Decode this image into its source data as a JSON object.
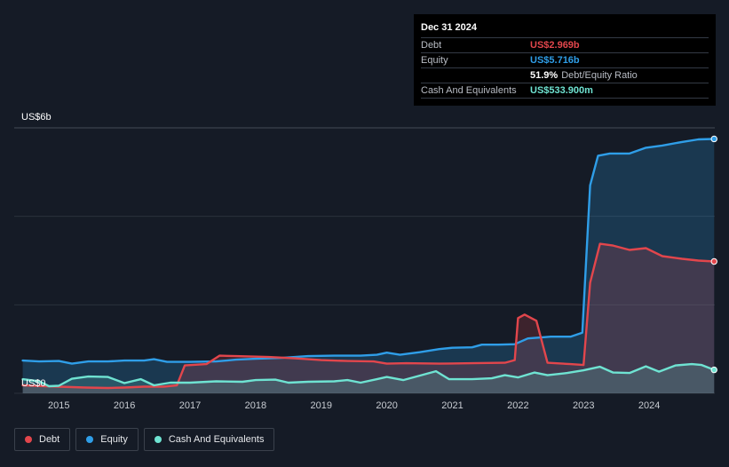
{
  "tooltip": {
    "date": "Dec 31 2024",
    "rows": [
      {
        "label": "Debt",
        "value": "US$2.969b",
        "color": "#e2464c"
      },
      {
        "label": "Equity",
        "value": "US$5.716b",
        "color": "#2f9ee8"
      },
      {
        "label": "",
        "value": "51.9%",
        "suffix": "Debt/Equity Ratio",
        "color": "#ffffff"
      },
      {
        "label": "Cash And Equivalents",
        "value": "US$533.900m",
        "color": "#6fe3d2"
      }
    ]
  },
  "legend": [
    {
      "label": "Debt",
      "color": "#e2464c"
    },
    {
      "label": "Equity",
      "color": "#2f9ee8"
    },
    {
      "label": "Cash And Equivalents",
      "color": "#6fe3d2"
    }
  ],
  "chart_data": {
    "type": "area",
    "y_unit_labels": {
      "top": "US$6b",
      "bottom": "US$0"
    },
    "ylim": [
      0,
      6
    ],
    "xlim": [
      2014.45,
      2025.0
    ],
    "x_ticks": [
      "2015",
      "2016",
      "2017",
      "2018",
      "2019",
      "2020",
      "2021",
      "2022",
      "2023",
      "2024"
    ],
    "grid": true,
    "legend_position": "bottom-left",
    "series": [
      {
        "name": "Equity",
        "color": "#2f9ee8",
        "points": [
          [
            2014.45,
            0.74
          ],
          [
            2014.7,
            0.72
          ],
          [
            2015.0,
            0.73
          ],
          [
            2015.2,
            0.67
          ],
          [
            2015.45,
            0.72
          ],
          [
            2015.75,
            0.72
          ],
          [
            2016.0,
            0.74
          ],
          [
            2016.3,
            0.74
          ],
          [
            2016.45,
            0.77
          ],
          [
            2016.65,
            0.71
          ],
          [
            2017.0,
            0.71
          ],
          [
            2017.4,
            0.72
          ],
          [
            2017.7,
            0.76
          ],
          [
            2018.0,
            0.78
          ],
          [
            2018.4,
            0.8
          ],
          [
            2018.8,
            0.84
          ],
          [
            2019.2,
            0.85
          ],
          [
            2019.6,
            0.85
          ],
          [
            2019.85,
            0.87
          ],
          [
            2020.0,
            0.92
          ],
          [
            2020.2,
            0.87
          ],
          [
            2020.5,
            0.93
          ],
          [
            2020.8,
            1.0
          ],
          [
            2021.0,
            1.03
          ],
          [
            2021.3,
            1.04
          ],
          [
            2021.45,
            1.1
          ],
          [
            2021.7,
            1.1
          ],
          [
            2021.95,
            1.11
          ],
          [
            2022.15,
            1.24
          ],
          [
            2022.5,
            1.28
          ],
          [
            2022.8,
            1.28
          ],
          [
            2022.98,
            1.37
          ],
          [
            2023.1,
            4.7
          ],
          [
            2023.22,
            5.37
          ],
          [
            2023.4,
            5.42
          ],
          [
            2023.7,
            5.42
          ],
          [
            2023.95,
            5.55
          ],
          [
            2024.2,
            5.6
          ],
          [
            2024.5,
            5.68
          ],
          [
            2024.75,
            5.74
          ],
          [
            2024.99,
            5.75
          ]
        ]
      },
      {
        "name": "Debt",
        "color": "#e2464c",
        "points": [
          [
            2014.45,
            0.18
          ],
          [
            2014.8,
            0.16
          ],
          [
            2015.0,
            0.15
          ],
          [
            2015.4,
            0.13
          ],
          [
            2015.75,
            0.12
          ],
          [
            2016.0,
            0.13
          ],
          [
            2016.3,
            0.15
          ],
          [
            2016.6,
            0.15
          ],
          [
            2016.8,
            0.18
          ],
          [
            2016.92,
            0.63
          ],
          [
            2017.25,
            0.66
          ],
          [
            2017.45,
            0.85
          ],
          [
            2017.7,
            0.84
          ],
          [
            2018.2,
            0.82
          ],
          [
            2018.6,
            0.79
          ],
          [
            2019.0,
            0.75
          ],
          [
            2019.4,
            0.73
          ],
          [
            2019.8,
            0.72
          ],
          [
            2020.0,
            0.67
          ],
          [
            2020.3,
            0.68
          ],
          [
            2020.8,
            0.67
          ],
          [
            2021.3,
            0.68
          ],
          [
            2021.8,
            0.69
          ],
          [
            2021.95,
            0.75
          ],
          [
            2022.0,
            1.7
          ],
          [
            2022.1,
            1.78
          ],
          [
            2022.28,
            1.64
          ],
          [
            2022.45,
            0.69
          ],
          [
            2022.8,
            0.66
          ],
          [
            2023.0,
            0.64
          ],
          [
            2023.1,
            2.5
          ],
          [
            2023.25,
            3.38
          ],
          [
            2023.45,
            3.34
          ],
          [
            2023.7,
            3.24
          ],
          [
            2023.95,
            3.28
          ],
          [
            2024.2,
            3.1
          ],
          [
            2024.5,
            3.04
          ],
          [
            2024.75,
            3.0
          ],
          [
            2024.99,
            2.98
          ]
        ]
      },
      {
        "name": "Cash And Equivalents",
        "color": "#6fe3d2",
        "points": [
          [
            2014.45,
            0.32
          ],
          [
            2014.7,
            0.27
          ],
          [
            2014.85,
            0.16
          ],
          [
            2015.0,
            0.17
          ],
          [
            2015.2,
            0.33
          ],
          [
            2015.45,
            0.38
          ],
          [
            2015.75,
            0.37
          ],
          [
            2016.0,
            0.23
          ],
          [
            2016.25,
            0.32
          ],
          [
            2016.45,
            0.18
          ],
          [
            2016.7,
            0.24
          ],
          [
            2017.0,
            0.24
          ],
          [
            2017.4,
            0.27
          ],
          [
            2017.8,
            0.26
          ],
          [
            2018.0,
            0.3
          ],
          [
            2018.3,
            0.31
          ],
          [
            2018.5,
            0.24
          ],
          [
            2018.8,
            0.26
          ],
          [
            2019.2,
            0.27
          ],
          [
            2019.4,
            0.3
          ],
          [
            2019.6,
            0.24
          ],
          [
            2019.85,
            0.32
          ],
          [
            2020.0,
            0.37
          ],
          [
            2020.25,
            0.3
          ],
          [
            2020.45,
            0.38
          ],
          [
            2020.75,
            0.5
          ],
          [
            2020.95,
            0.32
          ],
          [
            2021.3,
            0.32
          ],
          [
            2021.6,
            0.34
          ],
          [
            2021.8,
            0.41
          ],
          [
            2022.0,
            0.36
          ],
          [
            2022.25,
            0.47
          ],
          [
            2022.45,
            0.41
          ],
          [
            2022.75,
            0.46
          ],
          [
            2023.0,
            0.52
          ],
          [
            2023.25,
            0.6
          ],
          [
            2023.45,
            0.47
          ],
          [
            2023.7,
            0.46
          ],
          [
            2023.95,
            0.61
          ],
          [
            2024.15,
            0.49
          ],
          [
            2024.4,
            0.63
          ],
          [
            2024.65,
            0.66
          ],
          [
            2024.8,
            0.64
          ],
          [
            2024.99,
            0.53
          ]
        ]
      }
    ]
  }
}
